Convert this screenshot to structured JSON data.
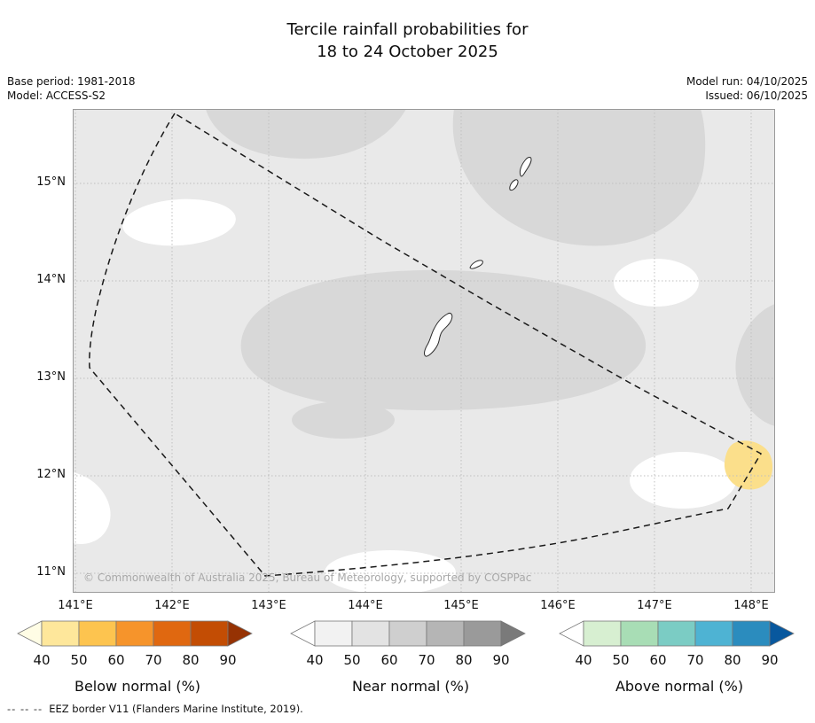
{
  "title": {
    "line1": "Tercile rainfall probabilities for",
    "line2": "18 to 24 October 2025"
  },
  "meta": {
    "base_period": "Base period: 1981-2018",
    "model": "Model: ACCESS-S2",
    "model_run": "Model run: 04/10/2025",
    "issued": "Issued: 06/10/2025"
  },
  "map": {
    "x_ticks": [
      "141°E",
      "142°E",
      "143°E",
      "144°E",
      "145°E",
      "146°E",
      "147°E",
      "148°E"
    ],
    "y_ticks": [
      "15°N",
      "14°N",
      "13°N",
      "12°N",
      "11°N"
    ],
    "copyright": "© Commonwealth of Australia 2025, Bureau of Meteorology, supported by COSPPac",
    "colors": {
      "near_normal_40_50": "#e9e9e9",
      "near_normal_50_60": "#d8d8d8",
      "below_40_50_patch": "#fbdf8b",
      "under_40_white": "#ffffff",
      "gridline": "#bfbfbf",
      "eez_line": "#1a1a1a",
      "coastline": "#2b2b2b",
      "frame": "#9a9a9a"
    }
  },
  "colorbars": [
    {
      "title": "Below normal (%)",
      "ticks": [
        "40",
        "50",
        "60",
        "70",
        "80",
        "90"
      ],
      "colors": [
        "#fffde5",
        "#fee79b",
        "#fdc44f",
        "#f6942b",
        "#e06810",
        "#c34d04",
        "#963203"
      ]
    },
    {
      "title": "Near normal (%)",
      "ticks": [
        "40",
        "50",
        "60",
        "70",
        "80",
        "90"
      ],
      "colors": [
        "#ffffff",
        "#f2f2f2",
        "#e3e3e3",
        "#cfcfcf",
        "#b5b5b5",
        "#9a9a9a",
        "#7a7a7a"
      ]
    },
    {
      "title": "Above normal (%)",
      "ticks": [
        "40",
        "50",
        "60",
        "70",
        "80",
        "90"
      ],
      "colors": [
        "#ffffff",
        "#d7efd1",
        "#a8ddb5",
        "#7bccc4",
        "#4eb3d3",
        "#2b8cbe",
        "#08589e"
      ]
    }
  ],
  "footer": {
    "dash_sample": "-- -- --",
    "eez_note": "EEZ border V11 (Flanders Marine Institute, 2019)."
  },
  "chart_data": {
    "type": "heatmap",
    "title": "Tercile rainfall probabilities for 18 to 24 October 2025",
    "x_axis": {
      "ticks": [
        "141°E",
        "142°E",
        "143°E",
        "144°E",
        "145°E",
        "146°E",
        "147°E",
        "148°E"
      ],
      "approx_range_deg_e": [
        141,
        148.3
      ]
    },
    "y_axis": {
      "ticks": [
        "11°N",
        "12°N",
        "13°N",
        "14°N",
        "15°N"
      ],
      "approx_range_deg_n": [
        10.8,
        15.8
      ]
    },
    "grid": true,
    "legend_position": "bottom",
    "colorbars": [
      {
        "name": "Below normal (%)",
        "tick_values": [
          40,
          50,
          60,
          70,
          80,
          90
        ]
      },
      {
        "name": "Near normal (%)",
        "tick_values": [
          40,
          50,
          60,
          70,
          80,
          90
        ]
      },
      {
        "name": "Above normal (%)",
        "tick_values": [
          40,
          50,
          60,
          70,
          80,
          90
        ]
      }
    ],
    "regions": [
      {
        "tercile": "Near normal",
        "probability": "40-50%",
        "area": "light gray shading over most of the map domain"
      },
      {
        "tercile": "Near normal",
        "probability": "50-60%",
        "area": "darker gray patches: 142-144°E above 15.3°N; 144.5-147.5°E 14.3-15.8°N; central band 142.8-146.5°E 12.7-13.7°N; small patch near 144°E 12.5°N; right edge near 148°E 12.5-13.8°N"
      },
      {
        "tercile": "Near normal",
        "probability": "under 40% (white)",
        "area": "patches near 141.5-142.5°E 15.2°N; 146.6°E 14.1°N; 141°E 11.2-11.6°N; 143.7-144.8°E 11°N; 146.8-147.7°E 11.7-12.3°N"
      },
      {
        "tercile": "Below normal",
        "probability": "40-50%",
        "area": "small pale-yellow patch near 147.8-148.3°E 11.9-12.2°N"
      }
    ],
    "overlays": [
      "Dashed EEZ border polygon spanning the domain",
      "Coastlines of Guam, Rota, Tinian and Saipan"
    ]
  }
}
